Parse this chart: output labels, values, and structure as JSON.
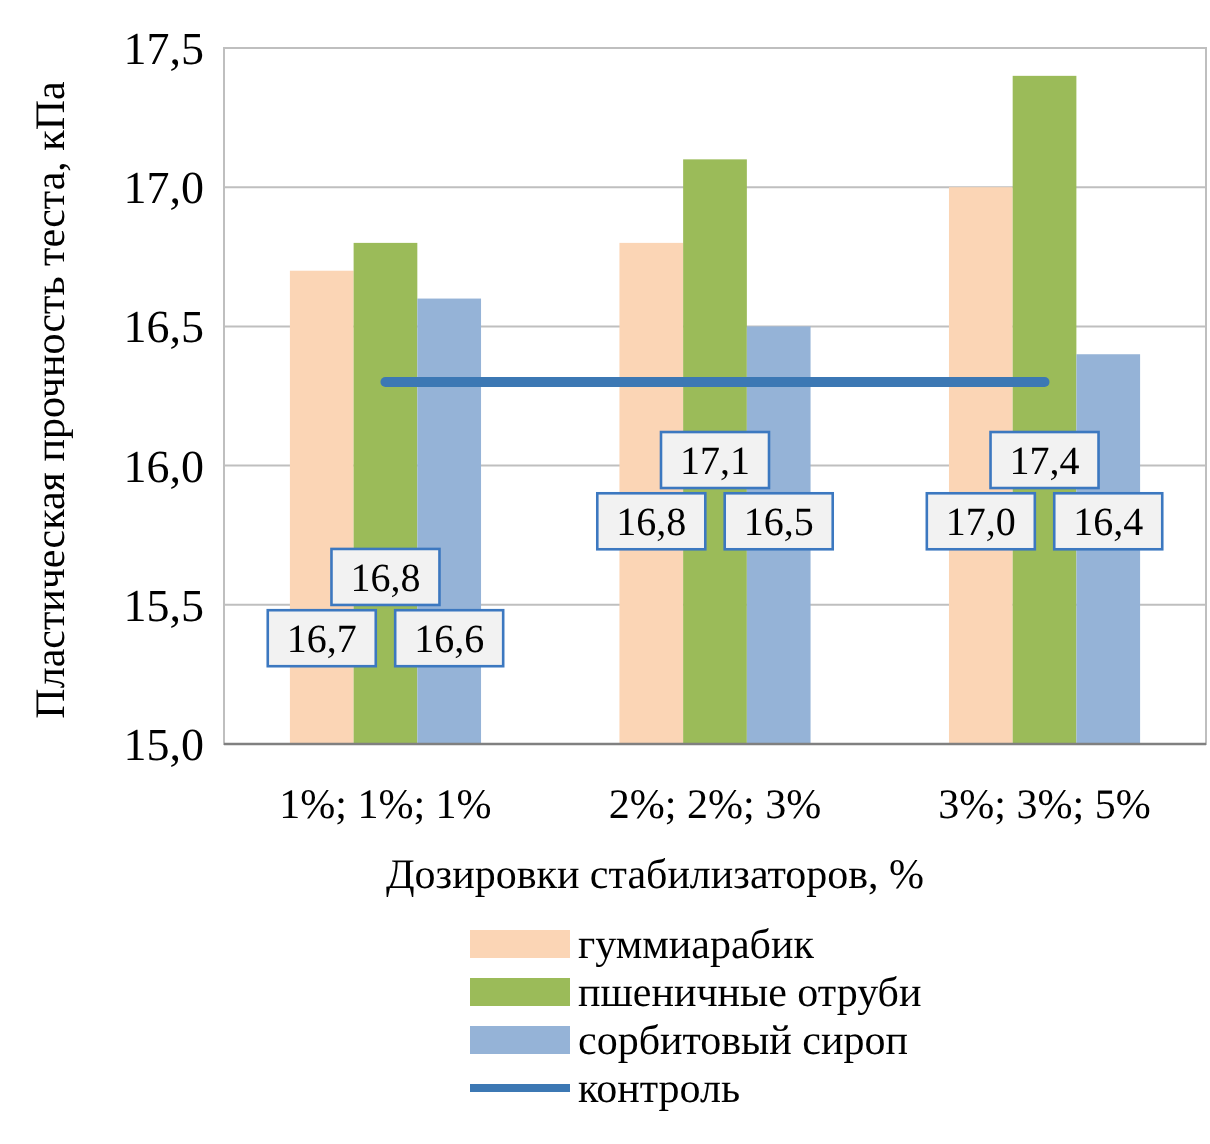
{
  "chart_data": {
    "type": "bar",
    "xlabel": "Дозировки стабилизаторов, %",
    "ylabel": "Пластическая прочность теста, кПа",
    "categories": [
      "1%; 1%; 1%",
      "2%; 2%; 3%",
      "3%; 3%; 5%"
    ],
    "series": [
      {
        "name": "гуммиарабик",
        "color": "#fbd5b5",
        "values": [
          16.7,
          16.8,
          17.0
        ],
        "value_labels": [
          "16,7",
          "16,8",
          "17,0"
        ]
      },
      {
        "name": "пшеничные отруби",
        "color": "#9bbb59",
        "values": [
          16.8,
          17.1,
          17.4
        ],
        "value_labels": [
          "16,8",
          "17,1",
          "17,4"
        ]
      },
      {
        "name": "сорбитовый сироп",
        "color": "#95b3d7",
        "values": [
          16.6,
          16.5,
          16.4
        ],
        "value_labels": [
          "16,6",
          "16,5",
          "16,4"
        ]
      },
      {
        "name": "контроль",
        "type": "line",
        "color": "#3c78b4",
        "values": [
          16.3,
          16.3,
          16.3
        ]
      }
    ],
    "ylim": [
      15.0,
      17.5
    ],
    "yticks": [
      {
        "value": 15.0,
        "label": "15,0"
      },
      {
        "value": 15.5,
        "label": "15,5"
      },
      {
        "value": 16.0,
        "label": "16,0"
      },
      {
        "value": 16.5,
        "label": "16,5"
      },
      {
        "value": 17.0,
        "label": "17,0"
      },
      {
        "value": 17.5,
        "label": "17,5"
      }
    ],
    "grid": "y",
    "legend": "bottom"
  }
}
